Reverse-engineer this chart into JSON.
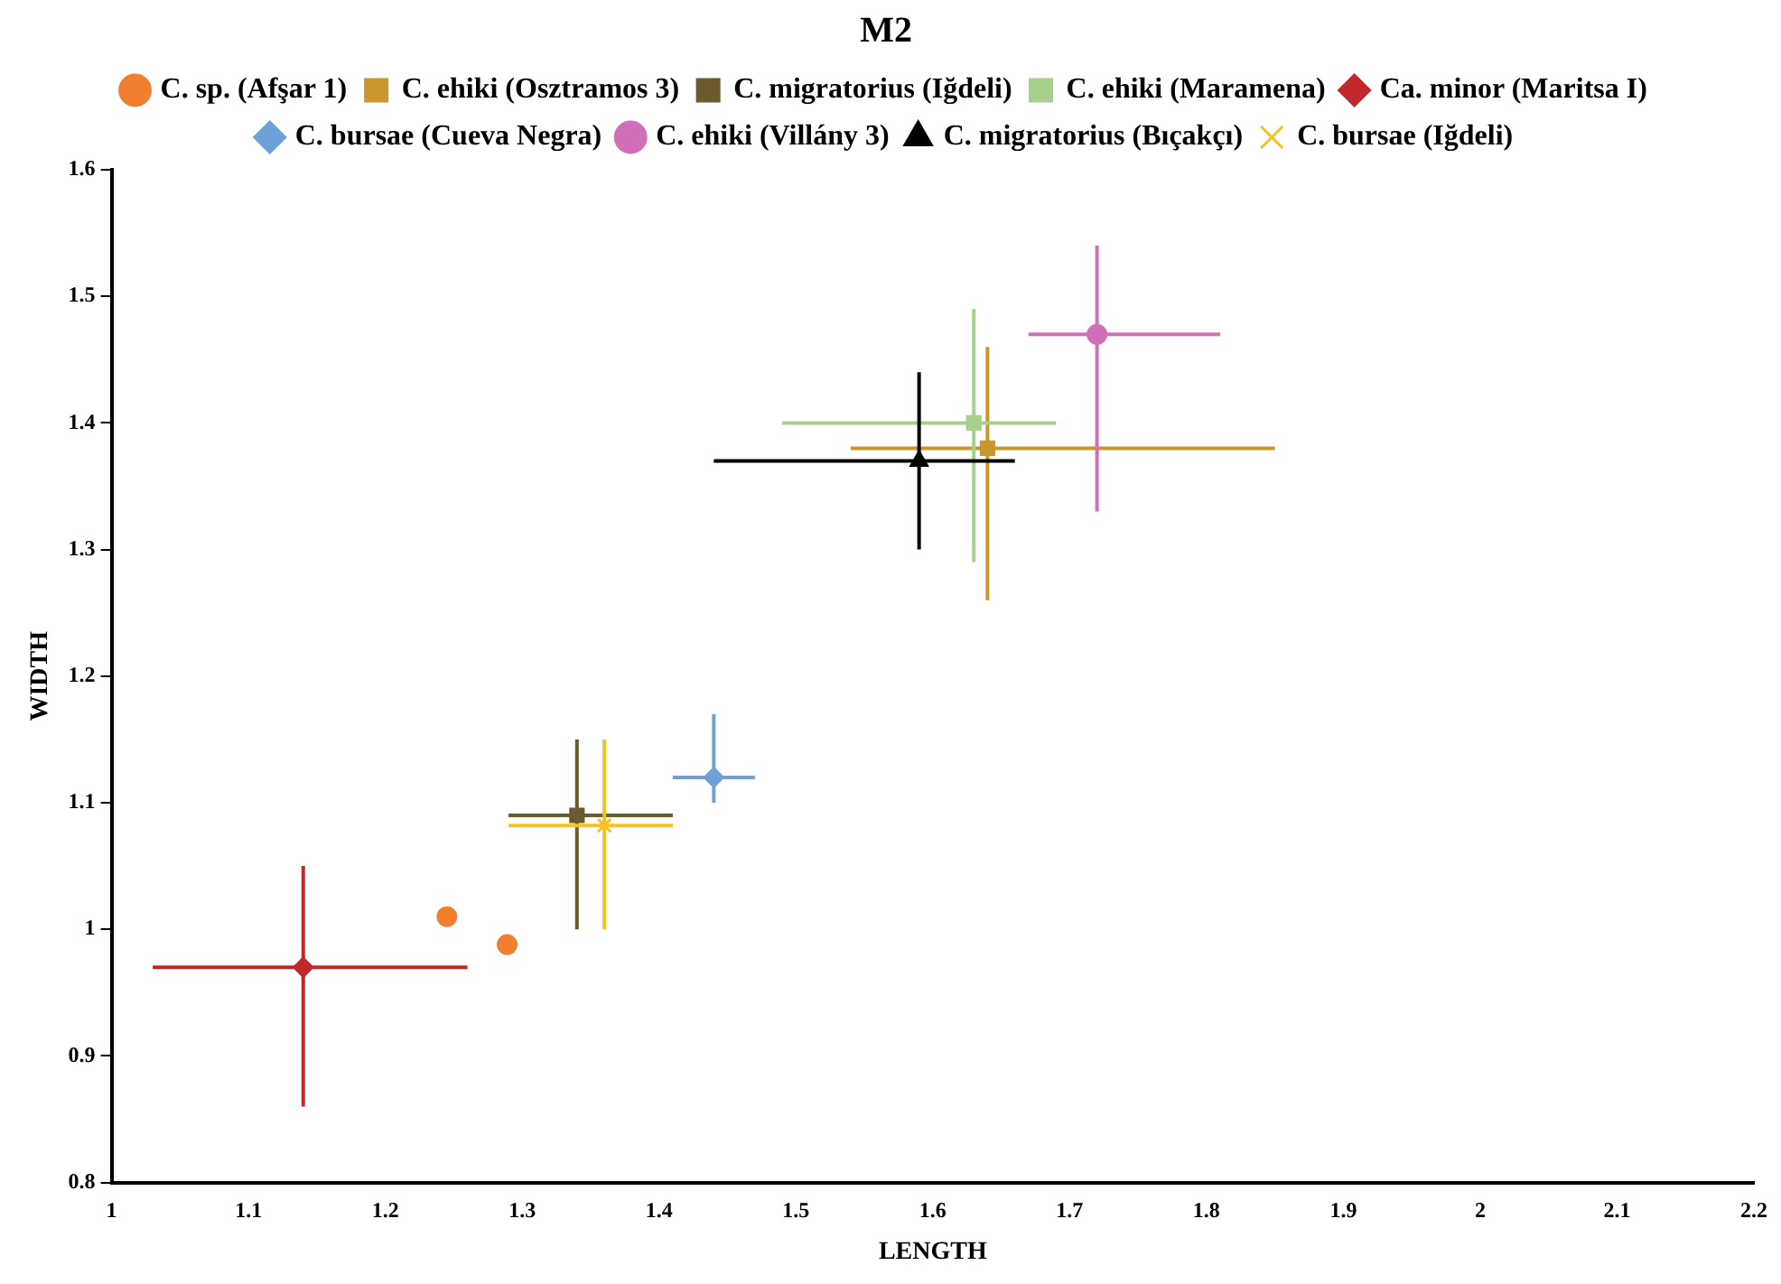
{
  "chart_data": {
    "type": "scatter",
    "title": "M2",
    "xlabel": "LENGTH",
    "ylabel": "WIDTH",
    "xlim": [
      1,
      2.2
    ],
    "xticks": [
      1,
      1.1,
      1.2,
      1.3,
      1.4,
      1.5,
      1.6,
      1.7,
      1.8,
      1.9,
      2,
      2.1,
      2.2
    ],
    "ylim": [
      0.8,
      1.6
    ],
    "yticks": [
      0.8,
      0.9,
      1,
      1.1,
      1.2,
      1.3,
      1.4,
      1.5,
      1.6
    ],
    "grid": false,
    "legend": "top",
    "series": [
      {
        "name": "C. sp. (Afşar 1)",
        "color": "#f07f30",
        "marker": "circle",
        "x": [
          1.245,
          1.289
        ],
        "values": [
          1.01,
          0.988
        ]
      },
      {
        "name": "C. ehiki (Osztramos 3)",
        "color": "#c8962c",
        "marker": "square",
        "x": [
          1.64
        ],
        "values": [
          1.38
        ],
        "xerrors": [
          [
            1.54,
            1.85
          ]
        ],
        "errors": [
          [
            1.26,
            1.46
          ]
        ]
      },
      {
        "name": "C. migratorius (Iğdeli)",
        "color": "#6b5a2e",
        "marker": "square",
        "x": [
          1.34
        ],
        "values": [
          1.09
        ],
        "xerrors": [
          [
            1.29,
            1.41
          ]
        ],
        "errors": [
          [
            1.0,
            1.15
          ]
        ]
      },
      {
        "name": "C. ehiki (Maramena)",
        "color": "#a8d08d",
        "marker": "square",
        "x": [
          1.63
        ],
        "values": [
          1.4
        ],
        "xerrors": [
          [
            1.49,
            1.69
          ]
        ],
        "errors": [
          [
            1.29,
            1.49
          ]
        ]
      },
      {
        "name": "Ca. minor (Maritsa I)",
        "color": "#c0282c",
        "marker": "diamond",
        "x": [
          1.14
        ],
        "values": [
          0.97
        ],
        "xerrors": [
          [
            1.03,
            1.26
          ]
        ],
        "errors": [
          [
            0.86,
            1.05
          ]
        ]
      },
      {
        "name": "C. bursae (Cueva Negra)",
        "color": "#6fa0d8",
        "marker": "diamond",
        "x": [
          1.44
        ],
        "values": [
          1.12
        ],
        "xerrors": [
          [
            1.41,
            1.47
          ]
        ],
        "errors": [
          [
            1.1,
            1.17
          ]
        ]
      },
      {
        "name": "C. ehiki (Villány 3)",
        "color": "#d070b8",
        "marker": "circle",
        "x": [
          1.72
        ],
        "values": [
          1.47
        ],
        "xerrors": [
          [
            1.67,
            1.81
          ]
        ],
        "errors": [
          [
            1.33,
            1.54
          ]
        ]
      },
      {
        "name": "C. migratorius (Bıçakçı)",
        "color": "#000000",
        "marker": "triangle",
        "x": [
          1.59
        ],
        "values": [
          1.37
        ],
        "xerrors": [
          [
            1.44,
            1.66
          ]
        ],
        "errors": [
          [
            1.3,
            1.44
          ]
        ]
      },
      {
        "name": "C. bursae (Iğdeli)",
        "color": "#f8c020",
        "marker": "cross",
        "x": [
          1.36
        ],
        "values": [
          1.082
        ],
        "xerrors": [
          [
            1.29,
            1.41
          ]
        ],
        "errors": [
          [
            1.0,
            1.15
          ]
        ]
      }
    ]
  }
}
